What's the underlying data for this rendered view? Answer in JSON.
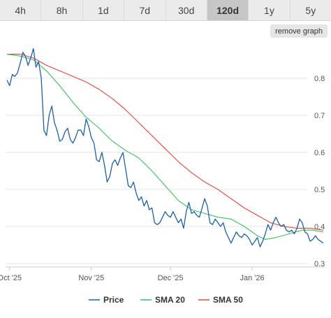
{
  "range_buttons": [
    {
      "label": "4h"
    },
    {
      "label": "8h"
    },
    {
      "label": "1d"
    },
    {
      "label": "7d"
    },
    {
      "label": "30d"
    },
    {
      "label": "120d",
      "active": true
    },
    {
      "label": "1y"
    },
    {
      "label": "5y"
    }
  ],
  "remove_graph_label": "remove graph",
  "colors": {
    "price": "#1f5fa8",
    "sma20": "#37c45f",
    "sma50": "#e8463a",
    "grid": "#e6e6e6"
  },
  "chart_data": {
    "type": "line",
    "title": "",
    "xlabel": "",
    "ylabel": "",
    "ylim": [
      0.3,
      0.9
    ],
    "y_ticks": [
      "0.3",
      "0.4",
      "0.5",
      "0.6",
      "0.7",
      "0.8"
    ],
    "x_ticks": [
      "Oct '25",
      "Nov '25",
      "Dec '25",
      "Jan '26"
    ],
    "x_tick_dates": [
      "2025-10-01",
      "2025-11-01",
      "2025-12-01",
      "2026-01-01"
    ],
    "x_range": [
      "2025-09-30",
      "2026-01-28"
    ],
    "grid": true,
    "legend_position": "bottom",
    "series": [
      {
        "name": "Price",
        "color_key": "price",
        "points": [
          [
            "2025-09-30",
            0.795
          ],
          [
            "2025-10-01",
            0.78
          ],
          [
            "2025-10-02",
            0.81
          ],
          [
            "2025-10-03",
            0.805
          ],
          [
            "2025-10-04",
            0.815
          ],
          [
            "2025-10-05",
            0.84
          ],
          [
            "2025-10-06",
            0.87
          ],
          [
            "2025-10-07",
            0.86
          ],
          [
            "2025-10-08",
            0.835
          ],
          [
            "2025-10-09",
            0.855
          ],
          [
            "2025-10-10",
            0.88
          ],
          [
            "2025-10-11",
            0.83
          ],
          [
            "2025-10-12",
            0.845
          ],
          [
            "2025-10-13",
            0.8
          ],
          [
            "2025-10-14",
            0.66
          ],
          [
            "2025-10-15",
            0.645
          ],
          [
            "2025-10-16",
            0.7
          ],
          [
            "2025-10-17",
            0.725
          ],
          [
            "2025-10-18",
            0.68
          ],
          [
            "2025-10-19",
            0.66
          ],
          [
            "2025-10-20",
            0.63
          ],
          [
            "2025-10-21",
            0.635
          ],
          [
            "2025-10-22",
            0.655
          ],
          [
            "2025-10-23",
            0.665
          ],
          [
            "2025-10-24",
            0.635
          ],
          [
            "2025-10-25",
            0.625
          ],
          [
            "2025-10-26",
            0.64
          ],
          [
            "2025-10-27",
            0.66
          ],
          [
            "2025-10-28",
            0.66
          ],
          [
            "2025-10-29",
            0.645
          ],
          [
            "2025-10-30",
            0.69
          ],
          [
            "2025-10-31",
            0.67
          ],
          [
            "2025-11-01",
            0.64
          ],
          [
            "2025-11-02",
            0.625
          ],
          [
            "2025-11-03",
            0.58
          ],
          [
            "2025-11-04",
            0.575
          ],
          [
            "2025-11-05",
            0.6
          ],
          [
            "2025-11-06",
            0.565
          ],
          [
            "2025-11-07",
            0.52
          ],
          [
            "2025-11-08",
            0.535
          ],
          [
            "2025-11-09",
            0.57
          ],
          [
            "2025-11-10",
            0.58
          ],
          [
            "2025-11-11",
            0.565
          ],
          [
            "2025-11-12",
            0.585
          ],
          [
            "2025-11-13",
            0.6
          ],
          [
            "2025-11-14",
            0.555
          ],
          [
            "2025-11-15",
            0.51
          ],
          [
            "2025-11-16",
            0.505
          ],
          [
            "2025-11-17",
            0.52
          ],
          [
            "2025-11-18",
            0.49
          ],
          [
            "2025-11-19",
            0.47
          ],
          [
            "2025-11-20",
            0.48
          ],
          [
            "2025-11-21",
            0.455
          ],
          [
            "2025-11-22",
            0.47
          ],
          [
            "2025-11-23",
            0.445
          ],
          [
            "2025-11-24",
            0.45
          ],
          [
            "2025-11-25",
            0.41
          ],
          [
            "2025-11-26",
            0.405
          ],
          [
            "2025-11-27",
            0.41
          ],
          [
            "2025-11-28",
            0.425
          ],
          [
            "2025-11-29",
            0.44
          ],
          [
            "2025-11-30",
            0.43
          ],
          [
            "2025-12-01",
            0.425
          ],
          [
            "2025-12-02",
            0.44
          ],
          [
            "2025-12-03",
            0.425
          ],
          [
            "2025-12-04",
            0.41
          ],
          [
            "2025-12-05",
            0.42
          ],
          [
            "2025-12-06",
            0.395
          ],
          [
            "2025-12-07",
            0.44
          ],
          [
            "2025-12-08",
            0.465
          ],
          [
            "2025-12-09",
            0.435
          ],
          [
            "2025-12-10",
            0.44
          ],
          [
            "2025-12-11",
            0.43
          ],
          [
            "2025-12-12",
            0.425
          ],
          [
            "2025-12-13",
            0.45
          ],
          [
            "2025-12-14",
            0.475
          ],
          [
            "2025-12-15",
            0.455
          ],
          [
            "2025-12-16",
            0.41
          ],
          [
            "2025-12-17",
            0.405
          ],
          [
            "2025-12-18",
            0.42
          ],
          [
            "2025-12-19",
            0.41
          ],
          [
            "2025-12-20",
            0.4
          ],
          [
            "2025-12-21",
            0.41
          ],
          [
            "2025-12-22",
            0.385
          ],
          [
            "2025-12-23",
            0.37
          ],
          [
            "2025-12-24",
            0.355
          ],
          [
            "2025-12-25",
            0.37
          ],
          [
            "2025-12-26",
            0.385
          ],
          [
            "2025-12-27",
            0.375
          ],
          [
            "2025-12-28",
            0.37
          ],
          [
            "2025-12-29",
            0.38
          ],
          [
            "2025-12-30",
            0.375
          ],
          [
            "2025-12-31",
            0.365
          ],
          [
            "2026-01-01",
            0.35
          ],
          [
            "2026-01-02",
            0.36
          ],
          [
            "2026-01-03",
            0.37
          ],
          [
            "2026-01-04",
            0.345
          ],
          [
            "2026-01-05",
            0.36
          ],
          [
            "2026-01-06",
            0.38
          ],
          [
            "2026-01-07",
            0.405
          ],
          [
            "2026-01-08",
            0.39
          ],
          [
            "2026-01-09",
            0.41
          ],
          [
            "2026-01-10",
            0.425
          ],
          [
            "2026-01-11",
            0.41
          ],
          [
            "2026-01-12",
            0.4
          ],
          [
            "2026-01-13",
            0.405
          ],
          [
            "2026-01-14",
            0.39
          ],
          [
            "2026-01-15",
            0.385
          ],
          [
            "2026-01-16",
            0.39
          ],
          [
            "2026-01-17",
            0.38
          ],
          [
            "2026-01-18",
            0.395
          ],
          [
            "2026-01-19",
            0.42
          ],
          [
            "2026-01-20",
            0.41
          ],
          [
            "2026-01-21",
            0.385
          ],
          [
            "2026-01-22",
            0.38
          ],
          [
            "2026-01-23",
            0.36
          ],
          [
            "2026-01-24",
            0.365
          ],
          [
            "2026-01-25",
            0.375
          ],
          [
            "2026-01-26",
            0.365
          ],
          [
            "2026-01-27",
            0.36
          ],
          [
            "2026-01-28",
            0.355
          ]
        ]
      },
      {
        "name": "SMA 20",
        "color_key": "sma20",
        "points": [
          [
            "2025-09-30",
            0.865
          ],
          [
            "2025-10-05",
            0.86
          ],
          [
            "2025-10-10",
            0.85
          ],
          [
            "2025-10-15",
            0.82
          ],
          [
            "2025-10-20",
            0.78
          ],
          [
            "2025-10-25",
            0.735
          ],
          [
            "2025-10-30",
            0.695
          ],
          [
            "2025-11-04",
            0.665
          ],
          [
            "2025-11-09",
            0.63
          ],
          [
            "2025-11-14",
            0.605
          ],
          [
            "2025-11-19",
            0.585
          ],
          [
            "2025-11-24",
            0.55
          ],
          [
            "2025-11-29",
            0.51
          ],
          [
            "2025-12-04",
            0.47
          ],
          [
            "2025-12-09",
            0.445
          ],
          [
            "2025-12-14",
            0.435
          ],
          [
            "2025-12-19",
            0.425
          ],
          [
            "2025-12-24",
            0.42
          ],
          [
            "2025-12-29",
            0.4
          ],
          [
            "2026-01-03",
            0.375
          ],
          [
            "2026-01-06",
            0.365
          ],
          [
            "2026-01-10",
            0.37
          ],
          [
            "2026-01-15",
            0.38
          ],
          [
            "2026-01-20",
            0.39
          ],
          [
            "2026-01-24",
            0.39
          ],
          [
            "2026-01-28",
            0.385
          ]
        ]
      },
      {
        "name": "SMA 50",
        "color_key": "sma50",
        "points": [
          [
            "2025-09-30",
            0.865
          ],
          [
            "2025-10-05",
            0.865
          ],
          [
            "2025-10-10",
            0.855
          ],
          [
            "2025-10-15",
            0.835
          ],
          [
            "2025-10-20",
            0.82
          ],
          [
            "2025-10-25",
            0.805
          ],
          [
            "2025-10-30",
            0.79
          ],
          [
            "2025-11-04",
            0.77
          ],
          [
            "2025-11-09",
            0.745
          ],
          [
            "2025-11-14",
            0.715
          ],
          [
            "2025-11-19",
            0.68
          ],
          [
            "2025-11-24",
            0.645
          ],
          [
            "2025-11-29",
            0.61
          ],
          [
            "2025-12-04",
            0.575
          ],
          [
            "2025-12-09",
            0.545
          ],
          [
            "2025-12-14",
            0.52
          ],
          [
            "2025-12-19",
            0.5
          ],
          [
            "2025-12-24",
            0.475
          ],
          [
            "2025-12-29",
            0.45
          ],
          [
            "2026-01-03",
            0.43
          ],
          [
            "2026-01-08",
            0.41
          ],
          [
            "2026-01-13",
            0.4
          ],
          [
            "2026-01-18",
            0.395
          ],
          [
            "2026-01-23",
            0.395
          ],
          [
            "2026-01-28",
            0.39
          ]
        ]
      }
    ]
  }
}
